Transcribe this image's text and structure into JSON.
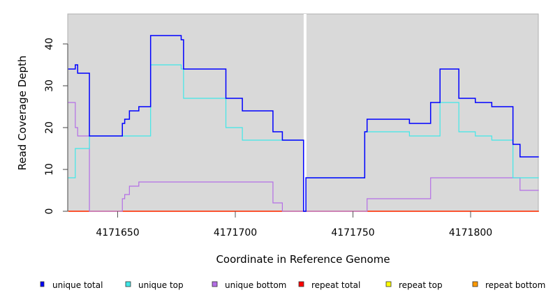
{
  "chart_data": {
    "type": "line",
    "step": true,
    "title": "",
    "xlabel": "Coordinate in Reference Genome",
    "ylabel": "Read Coverage Depth",
    "xlim": [
      4171629,
      4171829
    ],
    "ylim": [
      0,
      47
    ],
    "xticks": [
      4171650,
      4171700,
      4171750,
      4171800
    ],
    "xtick_labels": [
      "4171650",
      "4171700",
      "4171750",
      "4171800"
    ],
    "yticks": [
      0,
      10,
      20,
      30,
      40
    ],
    "ytick_labels": [
      "0",
      "10",
      "20",
      "30",
      "40"
    ],
    "break_at": 4171729.5,
    "legend_placement": "bottom",
    "series": [
      {
        "name": "unique total",
        "color": "#0000ff",
        "points": [
          [
            4171629,
            34
          ],
          [
            4171632,
            35
          ],
          [
            4171633,
            33
          ],
          [
            4171638,
            18
          ],
          [
            4171652,
            21
          ],
          [
            4171653,
            22
          ],
          [
            4171655,
            24
          ],
          [
            4171659,
            25
          ],
          [
            4171664,
            42
          ],
          [
            4171677,
            41
          ],
          [
            4171678,
            34
          ],
          [
            4171696,
            27
          ],
          [
            4171703,
            24
          ],
          [
            4171716,
            19
          ],
          [
            4171720,
            17
          ],
          [
            4171729,
            0
          ],
          [
            4171730,
            8
          ],
          [
            4171755,
            19
          ],
          [
            4171756,
            22
          ],
          [
            4171774,
            21
          ],
          [
            4171783,
            26
          ],
          [
            4171787,
            34
          ],
          [
            4171795,
            27
          ],
          [
            4171802,
            26
          ],
          [
            4171809,
            25
          ],
          [
            4171818,
            16
          ],
          [
            4171821,
            13
          ],
          [
            4171829,
            13
          ]
        ]
      },
      {
        "name": "unique top",
        "color": "#40e8e8",
        "points": [
          [
            4171629,
            8
          ],
          [
            4171632,
            15
          ],
          [
            4171638,
            18
          ],
          [
            4171664,
            35
          ],
          [
            4171677,
            34
          ],
          [
            4171678,
            27
          ],
          [
            4171696,
            20
          ],
          [
            4171703,
            17
          ],
          [
            4171729,
            0
          ],
          [
            4171730,
            8
          ],
          [
            4171755,
            19
          ],
          [
            4171774,
            18
          ],
          [
            4171787,
            26
          ],
          [
            4171795,
            19
          ],
          [
            4171802,
            18
          ],
          [
            4171809,
            17
          ],
          [
            4171818,
            8
          ],
          [
            4171829,
            8
          ]
        ]
      },
      {
        "name": "unique bottom",
        "color": "#b46ee6",
        "points": [
          [
            4171629,
            26
          ],
          [
            4171632,
            20
          ],
          [
            4171633,
            18
          ],
          [
            4171638,
            0
          ],
          [
            4171652,
            3
          ],
          [
            4171653,
            4
          ],
          [
            4171655,
            6
          ],
          [
            4171659,
            7
          ],
          [
            4171716,
            2
          ],
          [
            4171720,
            0
          ],
          [
            4171756,
            3
          ],
          [
            4171783,
            8
          ],
          [
            4171821,
            5
          ],
          [
            4171829,
            5
          ]
        ]
      },
      {
        "name": "repeat total",
        "color": "#ff0000",
        "points": [
          [
            4171629,
            0
          ],
          [
            4171829,
            0
          ]
        ]
      },
      {
        "name": "repeat top",
        "color": "#ffff00",
        "points": [
          [
            4171629,
            0
          ],
          [
            4171829,
            0
          ]
        ]
      },
      {
        "name": "repeat bottom",
        "color": "#ff9900",
        "points": [
          [
            4171629,
            0
          ],
          [
            4171829,
            0
          ]
        ]
      }
    ]
  }
}
